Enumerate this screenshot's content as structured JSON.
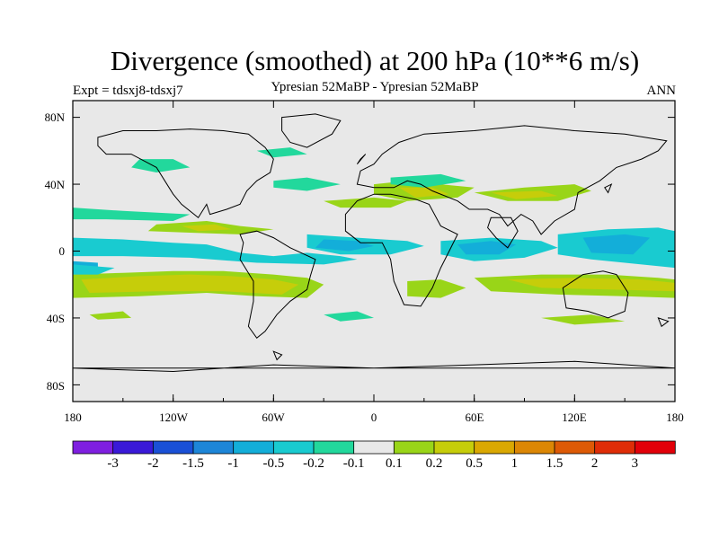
{
  "title": "Divergence (smoothed) at 200 hPa (10**6 m/s)",
  "subtitle": "Ypresian  52MaBP - Ypresian  52MaBP",
  "expt_label": "Expt = tdsxj8-tdsxj7",
  "season_label": "ANN",
  "lat_ticks": [
    "80N",
    "40N",
    "0",
    "40S",
    "80S"
  ],
  "lon_ticks": [
    "180",
    "120W",
    "60W",
    "0",
    "60E",
    "120E",
    "180"
  ],
  "colorbar": {
    "labels": [
      "-3",
      "-2",
      "-1.5",
      "-1",
      "-0.5",
      "-0.2",
      "-0.1",
      "0.1",
      "0.2",
      "0.5",
      "1",
      "1.5",
      "2",
      "3"
    ],
    "colors": [
      "#7f1fe0",
      "#3a19d8",
      "#1a50d6",
      "#1d86d8",
      "#13aed9",
      "#19cbd0",
      "#22d89c",
      "#e8e8e8",
      "#99d518",
      "#c6cd0a",
      "#daa802",
      "#dc8705",
      "#dd5a06",
      "#df2d07",
      "#e20009"
    ]
  },
  "colors": {
    "background": "#e8e8e8",
    "cyan": "#19cbd0",
    "blue": "#13aed9",
    "mint": "#22d89c",
    "green": "#99d518",
    "olive": "#c6cd0a"
  },
  "chart_data": {
    "type": "heatmap",
    "title": "Divergence (smoothed) at 200 hPa (10**6 m/s)",
    "variable": "200 hPa divergence difference",
    "units": "10**6 m/s",
    "projection": "cylindrical equidistant",
    "xlim": [
      -180,
      180
    ],
    "ylim": [
      -90,
      90
    ],
    "levels": [
      -3,
      -2,
      -1.5,
      -1,
      -0.5,
      -0.2,
      -0.1,
      0.1,
      0.2,
      0.5,
      1,
      1.5,
      2,
      3
    ],
    "features": [
      {
        "name": "equatorial-pacific-convergence",
        "lon": [
          -180,
          -70
        ],
        "lat": [
          -2,
          8
        ],
        "value": -0.2
      },
      {
        "name": "south-pacific-divergence",
        "lon": [
          -180,
          -40
        ],
        "lat": [
          -30,
          -10
        ],
        "value": 0.2
      },
      {
        "name": "tropical-indian-convergence",
        "lon": [
          40,
          110
        ],
        "lat": [
          -5,
          8
        ],
        "value": -0.2
      },
      {
        "name": "west-pacific-convergence",
        "lon": [
          115,
          165
        ],
        "lat": [
          -5,
          15
        ],
        "value": -0.5
      },
      {
        "name": "south-indian-divergence",
        "lon": [
          55,
          180
        ],
        "lat": [
          -30,
          -15
        ],
        "value": 0.2
      },
      {
        "name": "mediterranean-divergence",
        "lon": [
          0,
          60
        ],
        "lat": [
          25,
          40
        ],
        "value": 0.2
      }
    ]
  }
}
